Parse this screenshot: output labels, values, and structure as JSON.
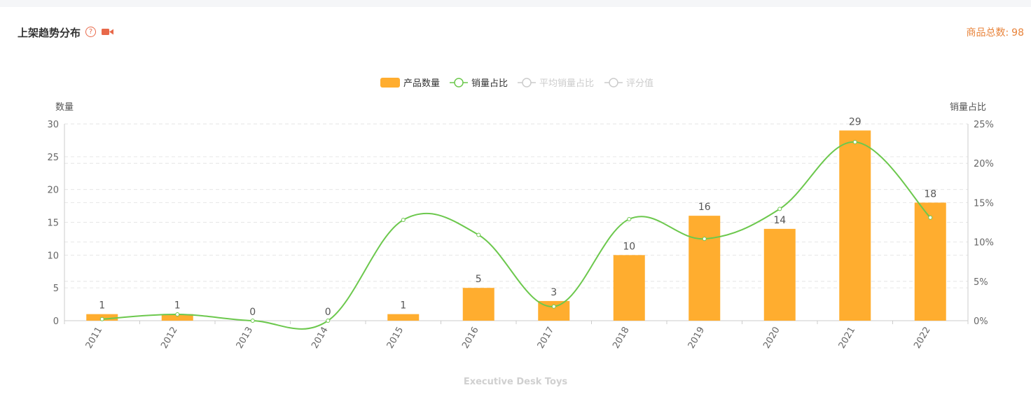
{
  "header": {
    "title": "上架趋势分布",
    "help_icon": "question-circle-icon",
    "video_icon": "video-camera-icon",
    "total_label": "商品总数:",
    "total_value": "98"
  },
  "footer": {
    "text": "Executive Desk Toys"
  },
  "colors": {
    "bar": "#ffad2f",
    "line": "#6cc84d",
    "inactive": "#cccccc",
    "accent": "#e8694a",
    "total": "#e8833a"
  },
  "chart_data": {
    "type": "bar",
    "categories": [
      "2011",
      "2012",
      "2013",
      "2014",
      "2015",
      "2016",
      "2017",
      "2018",
      "2019",
      "2020",
      "2021",
      "2022"
    ],
    "y_left": {
      "label": "数量",
      "ylim": [
        0,
        30
      ],
      "ticks": [
        "0",
        "5",
        "10",
        "15",
        "20",
        "25",
        "30"
      ]
    },
    "y_right": {
      "label": "销量占比",
      "ylim": [
        0,
        25
      ],
      "ticks": [
        "0%",
        "5%",
        "10%",
        "15%",
        "20%",
        "25%"
      ]
    },
    "legend": {
      "placement": "top-center",
      "items": [
        {
          "name": "产品数量",
          "active": true
        },
        {
          "name": "销量占比",
          "active": true
        },
        {
          "name": "平均销量占比",
          "active": false
        },
        {
          "name": "评分值",
          "active": false
        }
      ]
    },
    "series": [
      {
        "name": "产品数量",
        "type": "bar",
        "axis": "left",
        "values": [
          1,
          1,
          0,
          0,
          1,
          5,
          3,
          10,
          16,
          14,
          29,
          18
        ]
      },
      {
        "name": "销量占比",
        "type": "line",
        "axis": "right",
        "smooth": true,
        "values": [
          0.2,
          0.8,
          0,
          0,
          12.8,
          10.9,
          1.8,
          12.9,
          10.4,
          14.2,
          22.7,
          13.1
        ]
      }
    ],
    "grid": true
  }
}
